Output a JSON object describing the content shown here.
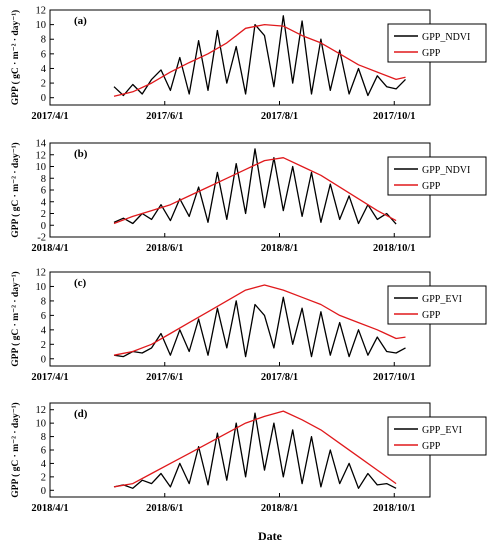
{
  "figure": {
    "xlabel": "Date",
    "colors": {
      "model": "#000000",
      "gpp": "#e0191c"
    }
  },
  "chart_data": [
    {
      "type": "line",
      "panel_label": "(a)",
      "ylabel": "GPP ( gC · m⁻² · day⁻¹)",
      "ylim": [
        -1,
        12
      ],
      "yticks": [
        0,
        2,
        4,
        6,
        8,
        10,
        12
      ],
      "xlim": [
        "2017-04-01",
        "2017-10-20"
      ],
      "xticks": [
        "2017-04-01",
        "2017-06-01",
        "2017-08-01",
        "2017-10-01"
      ],
      "xtick_labels": [
        "2017/4/1",
        "2017/6/1",
        "2017/8/1",
        "2017/10/1"
      ],
      "legend_position": "top-right",
      "series": [
        {
          "name": "GPP_NDVI",
          "x": [
            "2017-05-05",
            "2017-05-10",
            "2017-05-15",
            "2017-05-20",
            "2017-05-25",
            "2017-05-30",
            "2017-06-04",
            "2017-06-09",
            "2017-06-14",
            "2017-06-19",
            "2017-06-24",
            "2017-06-29",
            "2017-07-04",
            "2017-07-09",
            "2017-07-14",
            "2017-07-19",
            "2017-07-24",
            "2017-07-29",
            "2017-08-03",
            "2017-08-08",
            "2017-08-13",
            "2017-08-18",
            "2017-08-23",
            "2017-08-28",
            "2017-09-02",
            "2017-09-07",
            "2017-09-12",
            "2017-09-17",
            "2017-09-22",
            "2017-09-27",
            "2017-10-02",
            "2017-10-07"
          ],
          "values": [
            1.5,
            0.3,
            1.8,
            0.5,
            2.5,
            3.8,
            1.0,
            5.5,
            0.5,
            7.8,
            1.0,
            9.2,
            2.0,
            7.0,
            0.5,
            10.0,
            8.5,
            1.5,
            11.2,
            2.0,
            10.5,
            0.5,
            8.0,
            1.0,
            6.5,
            0.5,
            4.0,
            0.3,
            3.0,
            1.5,
            1.2,
            2.5
          ]
        },
        {
          "name": "GPP",
          "x": [
            "2017-05-05",
            "2017-05-15",
            "2017-05-25",
            "2017-06-04",
            "2017-06-14",
            "2017-06-24",
            "2017-07-04",
            "2017-07-14",
            "2017-07-24",
            "2017-08-03",
            "2017-08-13",
            "2017-08-23",
            "2017-09-02",
            "2017-09-12",
            "2017-09-22",
            "2017-10-02",
            "2017-10-07"
          ],
          "values": [
            0.2,
            0.8,
            2.0,
            3.5,
            4.8,
            6.0,
            7.5,
            9.5,
            10.0,
            9.8,
            8.5,
            7.5,
            6.0,
            4.5,
            3.5,
            2.5,
            2.8
          ]
        }
      ]
    },
    {
      "type": "line",
      "panel_label": "(b)",
      "ylabel": "GPP ( gC · m⁻² · day⁻¹)",
      "ylim": [
        -2,
        14
      ],
      "yticks": [
        -2,
        0,
        2,
        4,
        6,
        8,
        10,
        12,
        14
      ],
      "xlim": [
        "2018-04-01",
        "2018-10-20"
      ],
      "xticks": [
        "2018-04-01",
        "2018-06-01",
        "2018-08-01",
        "2018-10-01"
      ],
      "xtick_labels": [
        "2018/4/1",
        "2018/6/1",
        "2018/8/1",
        "2018/10/1"
      ],
      "legend_position": "top-right",
      "series": [
        {
          "name": "GPP_NDVI",
          "x": [
            "2018-05-05",
            "2018-05-10",
            "2018-05-15",
            "2018-05-20",
            "2018-05-25",
            "2018-05-30",
            "2018-06-04",
            "2018-06-09",
            "2018-06-14",
            "2018-06-19",
            "2018-06-24",
            "2018-06-29",
            "2018-07-04",
            "2018-07-09",
            "2018-07-14",
            "2018-07-19",
            "2018-07-24",
            "2018-07-29",
            "2018-08-03",
            "2018-08-08",
            "2018-08-13",
            "2018-08-18",
            "2018-08-23",
            "2018-08-28",
            "2018-09-02",
            "2018-09-07",
            "2018-09-12",
            "2018-09-17",
            "2018-09-22",
            "2018-09-27",
            "2018-10-02"
          ],
          "values": [
            0.5,
            1.2,
            0.3,
            2.0,
            1.0,
            3.5,
            0.8,
            4.5,
            1.5,
            6.5,
            0.5,
            9.0,
            1.0,
            10.5,
            2.0,
            13.0,
            3.0,
            11.5,
            2.5,
            10.0,
            1.5,
            9.0,
            0.5,
            7.0,
            1.0,
            5.0,
            0.3,
            3.5,
            1.0,
            2.0,
            0.2
          ]
        },
        {
          "name": "GPP",
          "x": [
            "2018-05-05",
            "2018-05-15",
            "2018-05-25",
            "2018-06-04",
            "2018-06-14",
            "2018-06-24",
            "2018-07-04",
            "2018-07-14",
            "2018-07-24",
            "2018-08-03",
            "2018-08-13",
            "2018-08-23",
            "2018-09-02",
            "2018-09-12",
            "2018-09-22",
            "2018-10-02"
          ],
          "values": [
            0.3,
            1.5,
            2.5,
            3.5,
            5.0,
            6.5,
            8.0,
            9.5,
            11.0,
            11.5,
            10.0,
            8.5,
            6.5,
            4.5,
            2.5,
            0.8
          ]
        }
      ]
    },
    {
      "type": "line",
      "panel_label": "(c)",
      "ylabel": "GPP ( gC · m⁻² · day⁻¹)",
      "ylim": [
        -1,
        12
      ],
      "yticks": [
        0,
        2,
        4,
        6,
        8,
        10,
        12
      ],
      "xlim": [
        "2017-04-01",
        "2017-10-20"
      ],
      "xticks": [
        "2017-04-01",
        "2017-06-01",
        "2017-08-01",
        "2017-10-01"
      ],
      "xtick_labels": [
        "2017/4/1",
        "2017/6/1",
        "2017/8/1",
        "2017/10/1"
      ],
      "legend_position": "top-right",
      "series": [
        {
          "name": "GPP_EVI",
          "x": [
            "2017-05-05",
            "2017-05-10",
            "2017-05-15",
            "2017-05-20",
            "2017-05-25",
            "2017-05-30",
            "2017-06-04",
            "2017-06-09",
            "2017-06-14",
            "2017-06-19",
            "2017-06-24",
            "2017-06-29",
            "2017-07-04",
            "2017-07-09",
            "2017-07-14",
            "2017-07-19",
            "2017-07-24",
            "2017-07-29",
            "2017-08-03",
            "2017-08-08",
            "2017-08-13",
            "2017-08-18",
            "2017-08-23",
            "2017-08-28",
            "2017-09-02",
            "2017-09-07",
            "2017-09-12",
            "2017-09-17",
            "2017-09-22",
            "2017-09-27",
            "2017-10-02",
            "2017-10-07"
          ],
          "values": [
            0.5,
            0.3,
            1.0,
            0.8,
            1.5,
            3.5,
            0.5,
            4.0,
            1.0,
            5.5,
            0.5,
            7.0,
            1.5,
            8.0,
            0.3,
            7.5,
            6.0,
            1.5,
            8.5,
            2.0,
            7.0,
            0.3,
            6.5,
            0.5,
            5.0,
            0.3,
            4.0,
            0.5,
            3.0,
            1.0,
            0.8,
            1.5
          ]
        },
        {
          "name": "GPP",
          "x": [
            "2017-05-05",
            "2017-05-15",
            "2017-05-25",
            "2017-06-04",
            "2017-06-14",
            "2017-06-24",
            "2017-07-04",
            "2017-07-14",
            "2017-07-24",
            "2017-08-03",
            "2017-08-13",
            "2017-08-23",
            "2017-09-02",
            "2017-09-12",
            "2017-09-22",
            "2017-10-02",
            "2017-10-07"
          ],
          "values": [
            0.5,
            1.0,
            2.0,
            3.5,
            5.0,
            6.5,
            8.0,
            9.5,
            10.2,
            9.5,
            8.5,
            7.5,
            6.0,
            5.0,
            4.0,
            2.8,
            3.0
          ]
        }
      ]
    },
    {
      "type": "line",
      "panel_label": "(d)",
      "ylabel": "GPP ( gC · m⁻² · day⁻¹)",
      "ylim": [
        -1,
        13
      ],
      "yticks": [
        0,
        2,
        4,
        6,
        8,
        10,
        12
      ],
      "xlim": [
        "2018-04-01",
        "2018-10-20"
      ],
      "xticks": [
        "2018-04-01",
        "2018-06-01",
        "2018-08-01",
        "2018-10-01"
      ],
      "xtick_labels": [
        "2018/4/1",
        "2018/6/1",
        "2018/8/1",
        "2018/10/1"
      ],
      "legend_position": "top-right",
      "series": [
        {
          "name": "GPP_EVI",
          "x": [
            "2018-05-05",
            "2018-05-10",
            "2018-05-15",
            "2018-05-20",
            "2018-05-25",
            "2018-05-30",
            "2018-06-04",
            "2018-06-09",
            "2018-06-14",
            "2018-06-19",
            "2018-06-24",
            "2018-06-29",
            "2018-07-04",
            "2018-07-09",
            "2018-07-14",
            "2018-07-19",
            "2018-07-24",
            "2018-07-29",
            "2018-08-03",
            "2018-08-08",
            "2018-08-13",
            "2018-08-18",
            "2018-08-23",
            "2018-08-28",
            "2018-09-02",
            "2018-09-07",
            "2018-09-12",
            "2018-09-17",
            "2018-09-22",
            "2018-09-27",
            "2018-10-02"
          ],
          "values": [
            0.5,
            0.8,
            0.3,
            1.5,
            1.0,
            2.5,
            0.5,
            4.0,
            1.0,
            6.5,
            0.8,
            8.5,
            1.5,
            10.0,
            2.0,
            11.5,
            3.0,
            10.0,
            2.0,
            9.0,
            1.0,
            8.0,
            0.5,
            6.0,
            1.0,
            4.0,
            0.3,
            2.5,
            0.8,
            1.0,
            0.3
          ]
        },
        {
          "name": "GPP",
          "x": [
            "2018-05-05",
            "2018-05-15",
            "2018-05-25",
            "2018-06-04",
            "2018-06-14",
            "2018-06-24",
            "2018-07-04",
            "2018-07-14",
            "2018-07-24",
            "2018-08-03",
            "2018-08-13",
            "2018-08-23",
            "2018-09-02",
            "2018-09-12",
            "2018-09-22",
            "2018-10-02"
          ],
          "values": [
            0.5,
            1.0,
            2.5,
            4.0,
            5.5,
            7.0,
            8.5,
            10.0,
            11.0,
            11.8,
            10.5,
            9.0,
            7.0,
            5.0,
            3.0,
            1.0
          ]
        }
      ]
    }
  ]
}
